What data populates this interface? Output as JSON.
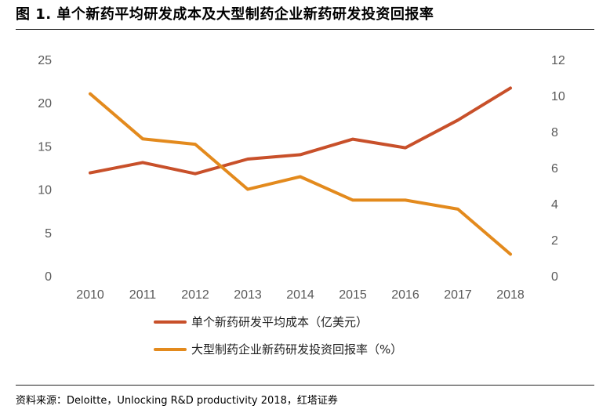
{
  "title": "图 1. 单个新药平均研发成本及大型制药企业新药研发投资回报率",
  "source": "资料来源：Deloitte，Unlocking R&D productivity 2018，红塔证券",
  "colors": {
    "series1": "#C8502A",
    "series2": "#E38A1D",
    "tick": "#595959"
  },
  "chart_data": {
    "type": "line",
    "title": "",
    "xlabel": "",
    "ylabel": "",
    "x": [
      "2010",
      "2011",
      "2012",
      "2013",
      "2014",
      "2015",
      "2016",
      "2017",
      "2018"
    ],
    "y_left": {
      "min": 0,
      "max": 25,
      "ticks": [
        0,
        5,
        10,
        15,
        20,
        25
      ]
    },
    "y_right": {
      "min": 0,
      "max": 12,
      "ticks": [
        0,
        2,
        4,
        6,
        8,
        10,
        12
      ]
    },
    "grid": false,
    "legend": "bottom",
    "series": [
      {
        "name": "单个新药研发平均成本（亿美元）",
        "axis": "left",
        "values": [
          11.9,
          13.1,
          11.8,
          13.5,
          14.0,
          15.8,
          14.8,
          18.0,
          21.7
        ]
      },
      {
        "name": "大型制药企业新药研发投资回报率（%）",
        "axis": "right",
        "values": [
          10.1,
          7.6,
          7.3,
          4.8,
          5.5,
          4.2,
          4.2,
          3.7,
          1.2
        ]
      }
    ]
  }
}
